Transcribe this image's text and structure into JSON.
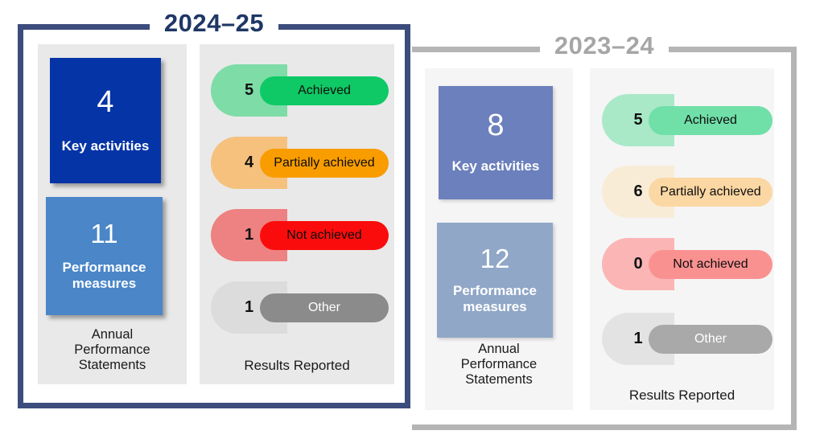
{
  "chart_data": {
    "type": "table",
    "title": "Annual Performance Statements — Results Reported",
    "categories": [
      "Key activities",
      "Performance measures",
      "Achieved",
      "Partially achieved",
      "Not achieved",
      "Other"
    ],
    "series": [
      {
        "name": "2024–25",
        "values": [
          4,
          11,
          5,
          4,
          1,
          1
        ]
      },
      {
        "name": "2023–24",
        "values": [
          8,
          12,
          5,
          6,
          0,
          1
        ]
      }
    ]
  },
  "panels": [
    {
      "title": "2024–25",
      "title_color": "#1e3765",
      "frame_color": "#3c4c7c",
      "column_bg": "#e9e9e9",
      "summary": {
        "key_activities": {
          "value": "4",
          "label": "Key activities",
          "bg": "#0534a6"
        },
        "performance_measures": {
          "value": "11",
          "label": "Performance measures",
          "bg": "#4a86c8"
        },
        "caption": "Annual Performance Statements"
      },
      "results": {
        "caption": "Results Reported",
        "items": [
          {
            "count": "5",
            "label": "Achieved",
            "light_color": "#7edca7",
            "pill_color": "#0ec965",
            "label_text_color": "#0d0d0d"
          },
          {
            "count": "4",
            "label": "Partially achieved",
            "light_color": "#f5c17d",
            "pill_color": "#f99c00",
            "label_text_color": "#0d0d0d"
          },
          {
            "count": "1",
            "label": "Not achieved",
            "light_color": "#ee8181",
            "pill_color": "#fb0c0c",
            "label_text_color": "#0d0d0d"
          },
          {
            "count": "1",
            "label": "Other",
            "light_color": "#dcdcdc",
            "pill_color": "#8b8b8b",
            "label_text_color": "#ffffff"
          }
        ]
      }
    },
    {
      "title": "2023–24",
      "title_color": "#a6a6a6",
      "frame_color": "#b5b5b5",
      "column_bg": "#f5f5f6",
      "summary": {
        "key_activities": {
          "value": "8",
          "label": "Key activities",
          "bg": "#6b80bc"
        },
        "performance_measures": {
          "value": "12",
          "label": "Performance measures",
          "bg": "#90a7c7"
        },
        "caption": "Annual Performance Statements"
      },
      "results": {
        "caption": "Results Reported",
        "items": [
          {
            "count": "5",
            "label": "Achieved",
            "light_color": "#a9e9c8",
            "pill_color": "#70dfa8",
            "label_text_color": "#0d0d0d"
          },
          {
            "count": "6",
            "label": "Partially achieved",
            "light_color": "#f9ecd7",
            "pill_color": "#fbd7a3",
            "label_text_color": "#0d0d0d"
          },
          {
            "count": "0",
            "label": "Not achieved",
            "light_color": "#fbb5b5",
            "pill_color": "#fa9191",
            "label_text_color": "#0d0d0d"
          },
          {
            "count": "1",
            "label": "Other",
            "light_color": "#e3e3e3",
            "pill_color": "#a9a9a9",
            "label_text_color": "#ffffff"
          }
        ]
      }
    }
  ]
}
